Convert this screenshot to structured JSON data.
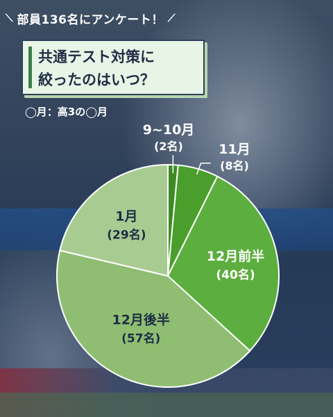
{
  "header": {
    "text": "部員136名にアンケート！"
  },
  "title": {
    "line1": "共通テスト対策に",
    "line2": "絞ったのはいつ？"
  },
  "note": "◯月：高3の◯月",
  "colors": {
    "slice_9_10": "#3e8b24",
    "slice_11": "#4a9e2c",
    "slice_12a": "#5cae3e",
    "slice_12b": "#8fbe72",
    "slice_1": "#a8cb92",
    "label_light": "#ffffff",
    "label_dark": "#1e2d45"
  },
  "chart_data": {
    "type": "pie",
    "title": "共通テスト対策に絞ったのはいつ？",
    "slices": [
      {
        "label": "9~10月",
        "value": 2,
        "value_text": "(2名)"
      },
      {
        "label": "11月",
        "value": 8,
        "value_text": "(8名)"
      },
      {
        "label": "12月前半",
        "value": 40,
        "value_text": "(40名)"
      },
      {
        "label": "12月後半",
        "value": 57,
        "value_text": "(57名)"
      },
      {
        "label": "1月",
        "value": 29,
        "value_text": "(29名)"
      }
    ],
    "total": 136
  }
}
